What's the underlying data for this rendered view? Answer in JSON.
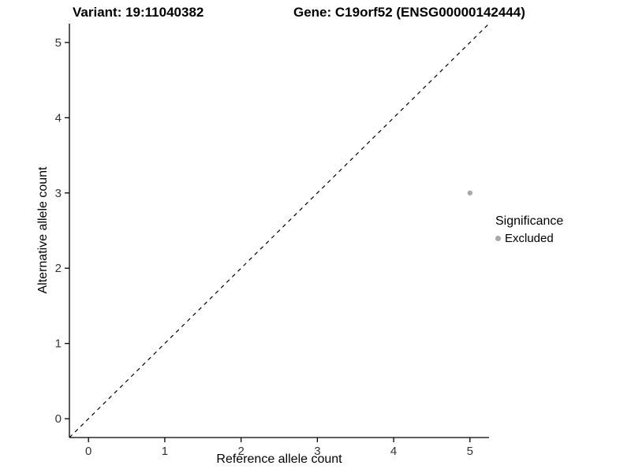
{
  "chart_data": {
    "type": "scatter",
    "title_left": "Variant: 19:11040382",
    "title_right": "Gene: C19orf52 (ENSG00000142444)",
    "xlabel": "Reference allele count",
    "ylabel": "Alternative allele count",
    "xlim": [
      -0.25,
      5.25
    ],
    "ylim": [
      -0.25,
      5.25
    ],
    "xticks": [
      0,
      1,
      2,
      3,
      4,
      5
    ],
    "yticks": [
      0,
      1,
      2,
      3,
      4,
      5
    ],
    "grid": false,
    "points": [
      {
        "x": 5,
        "y": 3,
        "series": "Excluded"
      }
    ],
    "identity_line": {
      "style": "dashed",
      "slope": 1,
      "intercept": 0,
      "color": "#000000"
    },
    "point_color": "#a8a8a8",
    "axis_color": "#000000",
    "tick_label_color": "#333333",
    "legend": {
      "title": "Significance",
      "position": "right",
      "entries": [
        {
          "label": "Excluded",
          "color": "#a8a8a8"
        }
      ]
    }
  }
}
